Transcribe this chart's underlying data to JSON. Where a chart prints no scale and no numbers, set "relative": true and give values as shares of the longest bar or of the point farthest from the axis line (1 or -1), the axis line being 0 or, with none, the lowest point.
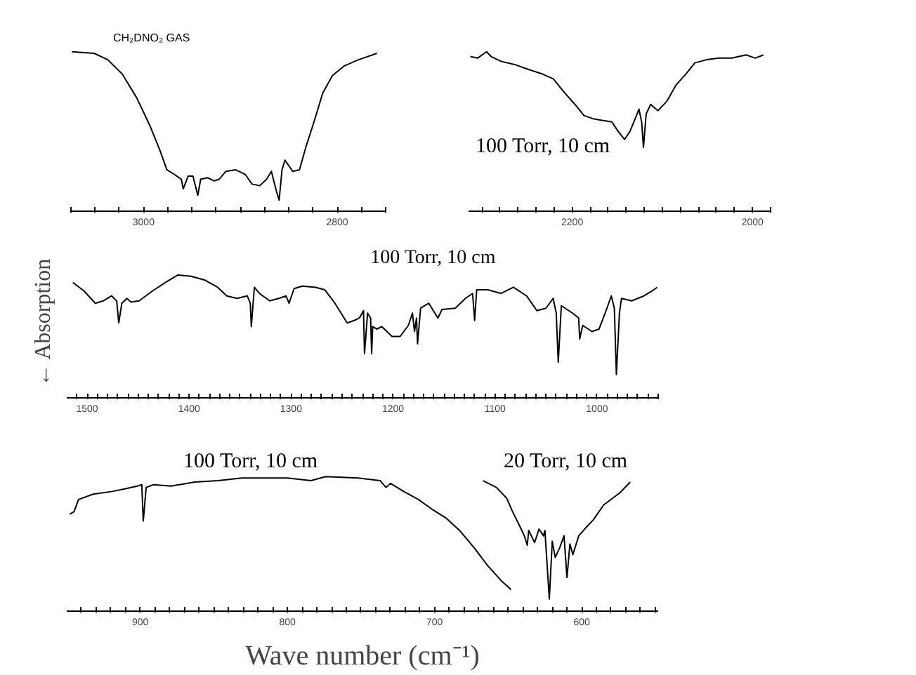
{
  "chart_data": [
    {
      "type": "line",
      "relative": true,
      "annotations": [
        "CH₂DNO₂ GAS"
      ],
      "xlim": [
        3075,
        2750
      ],
      "xticks": [
        {
          "value": 3075,
          "label": null
        },
        {
          "value": 3050,
          "label": null
        },
        {
          "value": 3025,
          "label": null
        },
        3000,
        {
          "value": 2975,
          "label": null
        },
        {
          "value": 2950,
          "label": null
        },
        {
          "value": 2925,
          "label": null
        },
        {
          "value": 2900,
          "label": null
        },
        {
          "value": 2875,
          "label": null
        },
        {
          "value": 2850,
          "label": null
        },
        {
          "value": 2825,
          "label": null
        },
        2800,
        {
          "value": 2775,
          "label": null
        },
        {
          "value": 2750,
          "label": null
        }
      ],
      "series": [
        {
          "color": "#000000",
          "x": [
            3074,
            3051,
            3037,
            3022,
            3007,
            2993,
            2983,
            2976,
            2968,
            2961,
            2959,
            2954,
            2949,
            2944,
            2941,
            2934,
            2927,
            2922,
            2915,
            2905,
            2895,
            2888,
            2880,
            2873,
            2868,
            2863,
            2860,
            2857,
            2854,
            2846,
            2839,
            2832,
            2824,
            2815,
            2805,
            2793,
            2778,
            2759
          ],
          "values": [
            1.0,
            0.99,
            0.95,
            0.86,
            0.71,
            0.53,
            0.38,
            0.26,
            0.23,
            0.2,
            0.14,
            0.22,
            0.22,
            0.1,
            0.2,
            0.21,
            0.19,
            0.2,
            0.25,
            0.26,
            0.23,
            0.17,
            0.16,
            0.2,
            0.25,
            0.13,
            0.07,
            0.26,
            0.32,
            0.25,
            0.26,
            0.41,
            0.56,
            0.74,
            0.85,
            0.91,
            0.95,
            0.99
          ]
        }
      ]
    },
    {
      "type": "line",
      "relative": true,
      "annotations": [
        "100 Torr, 10 cm"
      ],
      "xlim": [
        2315,
        1980
      ],
      "xticks": [
        {
          "value": 2300,
          "label": null
        },
        {
          "value": 2280,
          "label": null
        },
        {
          "value": 2260,
          "label": null
        },
        {
          "value": 2240,
          "label": null
        },
        {
          "value": 2220,
          "label": null
        },
        2200,
        {
          "value": 2180,
          "label": null
        },
        {
          "value": 2160,
          "label": null
        },
        {
          "value": 2140,
          "label": null
        },
        {
          "value": 2120,
          "label": null
        },
        {
          "value": 2100,
          "label": null
        },
        {
          "value": 2080,
          "label": null
        },
        {
          "value": 2060,
          "label": null
        },
        {
          "value": 2040,
          "label": null
        },
        {
          "value": 2020,
          "label": null
        },
        2000,
        {
          "value": 1980,
          "label": null
        }
      ],
      "series": [
        {
          "color": "#000000",
          "x": [
            2313,
            2305,
            2295,
            2290,
            2279,
            2264,
            2249,
            2233,
            2221,
            2208,
            2197,
            2187,
            2177,
            2167,
            2156,
            2149,
            2142,
            2136,
            2128,
            2126,
            2123,
            2121,
            2118,
            2113,
            2105,
            2095,
            2085,
            2074,
            2064,
            2051,
            2038,
            2023,
            2007,
            1997,
            1988
          ],
          "values": [
            0.97,
            0.96,
            1.0,
            0.97,
            0.94,
            0.92,
            0.89,
            0.86,
            0.83,
            0.74,
            0.67,
            0.6,
            0.58,
            0.57,
            0.56,
            0.5,
            0.45,
            0.5,
            0.61,
            0.64,
            0.56,
            0.4,
            0.61,
            0.67,
            0.63,
            0.69,
            0.79,
            0.86,
            0.93,
            0.95,
            0.96,
            0.96,
            0.98,
            0.96,
            0.98
          ]
        }
      ]
    },
    {
      "type": "line",
      "relative": true,
      "ylabel": "← Absorption",
      "annotations": [
        "100 Torr, 10 cm"
      ],
      "xlim": [
        1520,
        940
      ],
      "xticks": [
        {
          "value": 1510,
          "label": null
        },
        1500,
        {
          "value": 1490,
          "label": null
        },
        {
          "value": 1480,
          "label": null
        },
        {
          "value": 1470,
          "label": null
        },
        {
          "value": 1460,
          "label": null
        },
        {
          "value": 1450,
          "label": null
        },
        {
          "value": 1440,
          "label": null
        },
        {
          "value": 1430,
          "label": null
        },
        {
          "value": 1420,
          "label": null
        },
        {
          "value": 1410,
          "label": null
        },
        1400,
        {
          "value": 1390,
          "label": null
        },
        {
          "value": 1380,
          "label": null
        },
        {
          "value": 1370,
          "label": null
        },
        {
          "value": 1360,
          "label": null
        },
        {
          "value": 1350,
          "label": null
        },
        {
          "value": 1340,
          "label": null
        },
        {
          "value": 1330,
          "label": null
        },
        {
          "value": 1320,
          "label": null
        },
        {
          "value": 1310,
          "label": null
        },
        1300,
        {
          "value": 1290,
          "label": null
        },
        {
          "value": 1280,
          "label": null
        },
        {
          "value": 1270,
          "label": null
        },
        {
          "value": 1260,
          "label": null
        },
        {
          "value": 1250,
          "label": null
        },
        {
          "value": 1240,
          "label": null
        },
        {
          "value": 1230,
          "label": null
        },
        {
          "value": 1220,
          "label": null
        },
        {
          "value": 1210,
          "label": null
        },
        1200,
        {
          "value": 1190,
          "label": null
        },
        {
          "value": 1180,
          "label": null
        },
        {
          "value": 1170,
          "label": null
        },
        {
          "value": 1160,
          "label": null
        },
        {
          "value": 1150,
          "label": null
        },
        {
          "value": 1140,
          "label": null
        },
        {
          "value": 1130,
          "label": null
        },
        {
          "value": 1120,
          "label": null
        },
        {
          "value": 1110,
          "label": null
        },
        1100,
        {
          "value": 1090,
          "label": null
        },
        {
          "value": 1080,
          "label": null
        },
        {
          "value": 1070,
          "label": null
        },
        {
          "value": 1060,
          "label": null
        },
        {
          "value": 1050,
          "label": null
        },
        {
          "value": 1040,
          "label": null
        },
        {
          "value": 1030,
          "label": null
        },
        {
          "value": 1020,
          "label": null
        },
        {
          "value": 1010,
          "label": null
        },
        1000,
        {
          "value": 990,
          "label": null
        },
        {
          "value": 980,
          "label": null
        },
        {
          "value": 970,
          "label": null
        },
        {
          "value": 960,
          "label": null
        },
        {
          "value": 950,
          "label": null
        },
        {
          "value": 940,
          "label": null
        }
      ],
      "series": [
        {
          "color": "#000000",
          "x": [
            1514,
            1503,
            1492,
            1484,
            1476,
            1471,
            1469,
            1466,
            1461,
            1457,
            1449,
            1436,
            1423,
            1411,
            1398,
            1385,
            1372,
            1363,
            1353,
            1343,
            1340,
            1339,
            1336,
            1331,
            1321,
            1312,
            1305,
            1302,
            1297,
            1289,
            1276,
            1267,
            1257,
            1245,
            1238,
            1233,
            1229,
            1228,
            1225,
            1222,
            1221,
            1220,
            1216,
            1211,
            1201,
            1193,
            1185,
            1181,
            1179,
            1177,
            1176,
            1173,
            1165,
            1156,
            1152,
            1139,
            1129,
            1122,
            1120,
            1118,
            1107,
            1094,
            1082,
            1069,
            1059,
            1050,
            1043,
            1040,
            1038,
            1035,
            1024,
            1018,
            1017,
            1014,
            1005,
            998,
            992,
            986,
            983,
            981,
            978,
            976,
            966,
            954,
            946,
            941
          ],
          "values": [
            0.94,
            0.87,
            0.77,
            0.79,
            0.83,
            0.79,
            0.61,
            0.77,
            0.81,
            0.78,
            0.79,
            0.87,
            0.94,
            1.0,
            0.99,
            0.96,
            0.9,
            0.83,
            0.81,
            0.83,
            0.77,
            0.58,
            0.9,
            0.85,
            0.79,
            0.81,
            0.83,
            0.77,
            0.89,
            0.91,
            0.9,
            0.88,
            0.77,
            0.61,
            0.63,
            0.65,
            0.71,
            0.36,
            0.69,
            0.65,
            0.36,
            0.58,
            0.56,
            0.58,
            0.5,
            0.5,
            0.59,
            0.69,
            0.54,
            0.65,
            0.44,
            0.73,
            0.77,
            0.65,
            0.72,
            0.73,
            0.81,
            0.85,
            0.63,
            0.88,
            0.88,
            0.85,
            0.9,
            0.83,
            0.71,
            0.73,
            0.81,
            0.69,
            0.29,
            0.75,
            0.69,
            0.65,
            0.48,
            0.59,
            0.54,
            0.56,
            0.69,
            0.83,
            0.73,
            0.19,
            0.69,
            0.81,
            0.79,
            0.83,
            0.87,
            0.9
          ]
        }
      ]
    },
    {
      "type": "line",
      "relative": true,
      "xlabel": "Wave number (cm⁻¹)",
      "annotations": [
        "100 Torr, 10 cm",
        "20 Torr, 10 cm"
      ],
      "xlim": [
        950,
        548
      ],
      "xticks": [
        {
          "value": 940,
          "label": null
        },
        {
          "value": 930,
          "label": null
        },
        {
          "value": 920,
          "label": null
        },
        {
          "value": 910,
          "label": null
        },
        900,
        {
          "value": 890,
          "label": null
        },
        {
          "value": 880,
          "label": null
        },
        {
          "value": 870,
          "label": null
        },
        {
          "value": 860,
          "label": null
        },
        {
          "value": 850,
          "label": null
        },
        {
          "value": 840,
          "label": null
        },
        {
          "value": 830,
          "label": null
        },
        {
          "value": 820,
          "label": null
        },
        {
          "value": 810,
          "label": null
        },
        800,
        {
          "value": 790,
          "label": null
        },
        {
          "value": 780,
          "label": null
        },
        {
          "value": 770,
          "label": null
        },
        {
          "value": 760,
          "label": null
        },
        {
          "value": 750,
          "label": null
        },
        {
          "value": 740,
          "label": null
        },
        {
          "value": 730,
          "label": null
        },
        {
          "value": 720,
          "label": null
        },
        {
          "value": 710,
          "label": null
        },
        700,
        {
          "value": 690,
          "label": null
        },
        {
          "value": 680,
          "label": null
        },
        {
          "value": 670,
          "label": null
        },
        {
          "value": 660,
          "label": null
        },
        {
          "value": 650,
          "label": null
        },
        {
          "value": 640,
          "label": null
        },
        {
          "value": 630,
          "label": null
        },
        {
          "value": 620,
          "label": null
        },
        {
          "value": 610,
          "label": null
        },
        600,
        {
          "value": 590,
          "label": null
        },
        {
          "value": 580,
          "label": null
        },
        {
          "value": 570,
          "label": null
        },
        {
          "value": 560,
          "label": null
        },
        {
          "value": 550,
          "label": null
        }
      ],
      "series": [
        {
          "color": "#000000",
          "x": [
            948,
            945,
            942,
            932,
            919,
            910,
            902,
            899,
            898,
            896,
            891,
            879,
            863,
            847,
            831,
            815,
            800,
            784,
            774,
            752,
            737,
            733,
            730,
            721,
            711,
            702,
            692,
            683,
            673,
            664,
            655,
            648
          ],
          "values": [
            0.72,
            0.74,
            0.83,
            0.87,
            0.89,
            0.91,
            0.93,
            0.94,
            0.67,
            0.92,
            0.94,
            0.93,
            0.96,
            0.97,
            0.99,
            0.99,
            0.99,
            0.97,
            1.0,
            0.99,
            0.97,
            0.92,
            0.95,
            0.89,
            0.83,
            0.76,
            0.69,
            0.6,
            0.47,
            0.34,
            0.23,
            0.16
          ]
        },
        {
          "color": "#000000",
          "x": [
            667,
            658,
            651,
            647,
            642,
            639,
            637,
            636,
            632,
            629,
            626,
            625,
            622,
            620,
            618,
            615,
            612,
            610,
            608,
            606,
            602,
            598,
            592,
            585,
            574,
            567
          ],
          "values": [
            0.97,
            0.92,
            0.84,
            0.74,
            0.63,
            0.56,
            0.49,
            0.6,
            0.51,
            0.61,
            0.56,
            0.6,
            0.09,
            0.52,
            0.4,
            0.47,
            0.56,
            0.25,
            0.5,
            0.42,
            0.56,
            0.61,
            0.68,
            0.79,
            0.88,
            0.96
          ]
        }
      ]
    }
  ]
}
